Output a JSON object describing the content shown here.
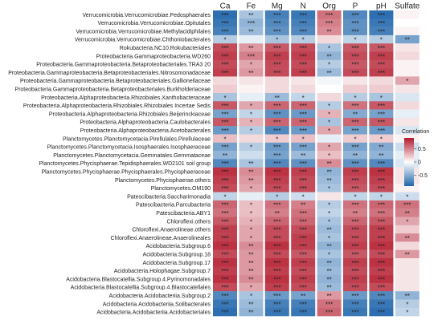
{
  "chart_data": {
    "type": "heatmap",
    "columns": [
      "Ca",
      "Fe",
      "Mg",
      "N",
      "Org",
      "P",
      "pH",
      "Sulfate"
    ],
    "rows": [
      "Verrucomicrobia.Verrucomicrobiae.Pedosphaerales",
      "Verrucomicrobia.Verrucomicrobiae.Opitutales",
      "Verrucomicrobia.Verrucomicrobiae.Methylacidiphilales",
      "Verrucomicrobia.Verrucomicrobiae.Chthoniobacterales",
      "Rokubacteria.NC10.Rokubacteriales",
      "Proteobacteria.Gammaproteobacteria.WD260",
      "Proteobacteria.Gammaproteobacteria.Betaproteobacteriales.TRA3 20",
      "Proteobacteria.Gammaproteobacteria.Betaproteobacteriales.Nitrosomonadaceae",
      "Proteobacteria.Gammaproteobacteria.Betaproteobacteriales.Gallionellaceae",
      "Proteobacteria.Gammaproteobacteria.Betaproteobacteriales.Burkholderiaceae",
      "Proteobacteria.Alphaproteobacteria.Rhizobiales.Xanthobacteraceae",
      "Proteobacteria.Alphaproteobacteria.Rhizobiales.Rhizobiales Incertae Sedis",
      "Proteobacteria.Alphaproteobacteria.Rhizobiales.Beijerinckiaceae",
      "Proteobacteria.Alphaproteobacteria.Caulobacterales",
      "Proteobacteria.Alphaproteobacteria.Acetobacterales",
      "Planctomycetes.Planctomycetacia.Pirellulales.Pirellulaceae",
      "Planctomycetes.Planctomycetacia.Isosphaerales.Isosphaeraceae",
      "Planctomycetes.Planctomycetacia.Gemmatales.Gemmataceae",
      "Planctomycetes.Phycisphaerae.Tepidisphaerales.WD2101 soil group",
      "Planctomycetes.Phycisphaerae.Phycisphaerales.Phycisphaeraceae",
      "Planctomycetes.Phycisphaerae.others",
      "Planctomycetes.OM190",
      "Patescibacteria.Saccharimonadia",
      "Patescibacteria.Parcubacteria",
      "Patescibacteria.ABY1",
      "Chloroflexi.others",
      "Chloroflexi.Anaerolineae.others",
      "Chloroflexi.Anaerolineae.Anaerolineales",
      "Acidobacteria.Subgroup.6",
      "Acidobacteria.Subgroup.18",
      "Acidobacteria.Subgroup.17",
      "Acidobacteria.Holophagae.Subgroup.7",
      "Acidobacteria.Blastocatellia.Subgroup.4.Pyrinomonadales",
      "Acidobacteria.Blastocatellia.Subgroup.4.Blastocatellales",
      "Acidobacteria.Acidobacteriia.Subgroup.2",
      "Acidobacteria.Acidobacteriia.Solibacterales",
      "Acidobacteria.Acidobacteriia.Acidobacteriales"
    ],
    "values": [
      [
        -0.85,
        -0.35,
        -0.75,
        -0.8,
        0.55,
        -0.7,
        -0.85,
        0.05
      ],
      [
        -0.8,
        -0.45,
        -0.7,
        -0.75,
        0.5,
        -0.65,
        -0.8,
        0.0
      ],
      [
        -0.75,
        -0.4,
        -0.65,
        -0.7,
        0.45,
        -0.65,
        -0.75,
        0.05
      ],
      [
        -0.3,
        -0.1,
        -0.35,
        -0.3,
        0.15,
        -0.25,
        -0.3,
        -0.55
      ],
      [
        0.7,
        0.4,
        0.65,
        0.7,
        -0.35,
        0.65,
        0.65,
        0.1
      ],
      [
        0.75,
        0.5,
        0.75,
        0.75,
        -0.45,
        0.7,
        0.75,
        0.15
      ],
      [
        0.7,
        0.35,
        0.7,
        0.7,
        -0.3,
        0.65,
        0.7,
        0.05
      ],
      [
        0.75,
        0.4,
        0.7,
        0.75,
        -0.4,
        0.7,
        0.75,
        0.05
      ],
      [
        0.15,
        0.1,
        0.15,
        0.1,
        -0.05,
        0.1,
        0.15,
        0.35
      ],
      [
        0.2,
        0.05,
        0.15,
        0.15,
        0.0,
        0.2,
        0.2,
        0.1
      ],
      [
        -0.35,
        -0.1,
        -0.4,
        -0.25,
        0.15,
        -0.3,
        -0.35,
        -0.15
      ],
      [
        0.65,
        0.35,
        0.6,
        0.6,
        -0.3,
        0.55,
        0.65,
        0.15
      ],
      [
        -0.55,
        -0.25,
        -0.65,
        -0.6,
        0.3,
        -0.5,
        -0.55,
        -0.1
      ],
      [
        0.65,
        0.3,
        0.6,
        0.6,
        -0.35,
        0.6,
        0.65,
        0.1
      ],
      [
        -0.6,
        -0.3,
        -0.7,
        -0.6,
        0.35,
        -0.55,
        -0.6,
        -0.15
      ],
      [
        0.25,
        0.15,
        0.2,
        0.25,
        -0.1,
        0.2,
        0.2,
        0.05
      ],
      [
        -0.55,
        -0.3,
        -0.6,
        -0.55,
        0.35,
        -0.55,
        -0.5,
        -0.2
      ],
      [
        -0.45,
        -0.2,
        -0.55,
        -0.4,
        0.25,
        -0.45,
        -0.45,
        -0.1
      ],
      [
        -0.7,
        -0.35,
        -0.7,
        -0.65,
        0.45,
        -0.65,
        -0.7,
        -0.15
      ],
      [
        0.8,
        0.45,
        0.8,
        0.75,
        -0.45,
        0.75,
        0.8,
        0.1
      ],
      [
        0.75,
        0.4,
        0.75,
        0.7,
        -0.4,
        0.7,
        0.75,
        0.1
      ],
      [
        0.7,
        0.35,
        0.7,
        0.7,
        -0.35,
        0.65,
        0.7,
        0.05
      ],
      [
        -0.25,
        -0.1,
        -0.3,
        -0.2,
        0.1,
        -0.25,
        -0.25,
        -0.2
      ],
      [
        0.6,
        0.25,
        0.55,
        0.5,
        -0.3,
        0.55,
        0.6,
        0.55
      ],
      [
        0.55,
        0.25,
        0.5,
        0.55,
        -0.25,
        0.5,
        0.55,
        0.5
      ],
      [
        0.65,
        0.3,
        0.6,
        0.6,
        -0.35,
        0.6,
        0.65,
        0.35
      ],
      [
        0.75,
        0.35,
        0.7,
        0.7,
        -0.4,
        0.7,
        0.75,
        0.2
      ],
      [
        0.75,
        0.35,
        0.7,
        0.75,
        -0.35,
        0.7,
        0.75,
        0.45
      ],
      [
        0.8,
        0.45,
        0.8,
        0.75,
        -0.45,
        0.75,
        0.8,
        0.15
      ],
      [
        0.7,
        0.4,
        0.7,
        0.65,
        -0.35,
        0.65,
        0.7,
        0.4
      ],
      [
        0.8,
        0.4,
        0.8,
        0.75,
        -0.45,
        0.75,
        0.8,
        0.1
      ],
      [
        0.75,
        0.4,
        0.75,
        0.7,
        -0.4,
        0.7,
        0.75,
        0.1
      ],
      [
        0.8,
        0.45,
        0.8,
        0.75,
        -0.45,
        0.75,
        0.8,
        0.1
      ],
      [
        0.7,
        0.35,
        0.75,
        0.7,
        -0.4,
        0.7,
        0.7,
        0.1
      ],
      [
        -0.7,
        -0.35,
        -0.6,
        -0.55,
        0.4,
        -0.6,
        -0.7,
        -0.45
      ],
      [
        -0.8,
        -0.4,
        -0.75,
        -0.75,
        0.55,
        -0.75,
        -0.8,
        -0.3
      ],
      [
        -0.85,
        -0.45,
        -0.8,
        -0.8,
        0.6,
        -0.8,
        -0.85,
        -0.25
      ]
    ],
    "significance": [
      [
        "***",
        "**",
        "***",
        "***",
        "***",
        "***",
        "***",
        ""
      ],
      [
        "***",
        "***",
        "***",
        "***",
        "***",
        "***",
        "***",
        ""
      ],
      [
        "***",
        "**",
        "***",
        "***",
        "**",
        "***",
        "***",
        ""
      ],
      [
        "*",
        "",
        "*",
        "*",
        "",
        "*",
        "*",
        "**"
      ],
      [
        "***",
        "**",
        "***",
        "***",
        "*",
        "***",
        "***",
        ""
      ],
      [
        "***",
        "***",
        "***",
        "***",
        "**",
        "***",
        "***",
        ""
      ],
      [
        "***",
        "*",
        "***",
        "***",
        "*",
        "***",
        "***",
        ""
      ],
      [
        "***",
        "**",
        "***",
        "***",
        "**",
        "***",
        "***",
        ""
      ],
      [
        "",
        "",
        "",
        "",
        "",
        "",
        "",
        "*"
      ],
      [
        "",
        "",
        "",
        "",
        "",
        "",
        "",
        ""
      ],
      [
        "*",
        "",
        "**",
        "*",
        "",
        "*",
        "*",
        ""
      ],
      [
        "***",
        "*",
        "***",
        "***",
        "*",
        "***",
        "***",
        ""
      ],
      [
        "***",
        "*",
        "***",
        "***",
        "*",
        "**",
        "***",
        ""
      ],
      [
        "***",
        "*",
        "***",
        "***",
        "*",
        "***",
        "***",
        ""
      ],
      [
        "***",
        "*",
        "***",
        "***",
        "*",
        "***",
        "***",
        ""
      ],
      [
        "*",
        "",
        "*",
        "*",
        "",
        "*",
        "*",
        ""
      ],
      [
        "***",
        "*",
        "***",
        "***",
        "*",
        "***",
        "**",
        ""
      ],
      [
        "**",
        "",
        "***",
        "**",
        "*",
        "**",
        "**",
        ""
      ],
      [
        "***",
        "**",
        "***",
        "***",
        "**",
        "***",
        "***",
        ""
      ],
      [
        "***",
        "**",
        "***",
        "***",
        "**",
        "***",
        "***",
        ""
      ],
      [
        "***",
        "**",
        "***",
        "***",
        "**",
        "***",
        "***",
        ""
      ],
      [
        "***",
        "*",
        "***",
        "***",
        "*",
        "***",
        "***",
        ""
      ],
      [
        "*",
        "",
        "*",
        "*",
        "",
        "*",
        "*",
        "*"
      ],
      [
        "***",
        "*",
        "***",
        "**",
        "*",
        "***",
        "***",
        "***"
      ],
      [
        "***",
        "*",
        "**",
        "***",
        "*",
        "**",
        "***",
        "**"
      ],
      [
        "***",
        "*",
        "***",
        "***",
        "*",
        "***",
        "***",
        "*"
      ],
      [
        "***",
        "*",
        "***",
        "***",
        "**",
        "***",
        "***",
        ""
      ],
      [
        "***",
        "*",
        "***",
        "***",
        "*",
        "***",
        "***",
        "**"
      ],
      [
        "***",
        "**",
        "***",
        "***",
        "**",
        "***",
        "***",
        ""
      ],
      [
        "***",
        "**",
        "***",
        "***",
        "*",
        "***",
        "***",
        "**"
      ],
      [
        "***",
        "**",
        "***",
        "***",
        "**",
        "***",
        "***",
        ""
      ],
      [
        "***",
        "**",
        "***",
        "***",
        "**",
        "***",
        "***",
        ""
      ],
      [
        "***",
        "**",
        "***",
        "***",
        "**",
        "***",
        "***",
        ""
      ],
      [
        "***",
        "*",
        "***",
        "***",
        "**",
        "***",
        "***",
        ""
      ],
      [
        "***",
        "*",
        "***",
        "**",
        "**",
        "***",
        "***",
        "**"
      ],
      [
        "***",
        "**",
        "***",
        "***",
        "***",
        "***",
        "***",
        "*"
      ],
      [
        "***",
        "**",
        "***",
        "***",
        "***",
        "***",
        "***",
        "*"
      ]
    ],
    "legend": {
      "title": "Correlation",
      "ticks": [
        0.5,
        0,
        -0.5
      ],
      "range": [
        -0.9,
        0.9
      ],
      "placement": "right"
    },
    "colors": {
      "negative": "#2166ac",
      "neutral": "#ffffff",
      "positive": "#b2182b",
      "stars": "#222222",
      "label": "#222222"
    }
  }
}
